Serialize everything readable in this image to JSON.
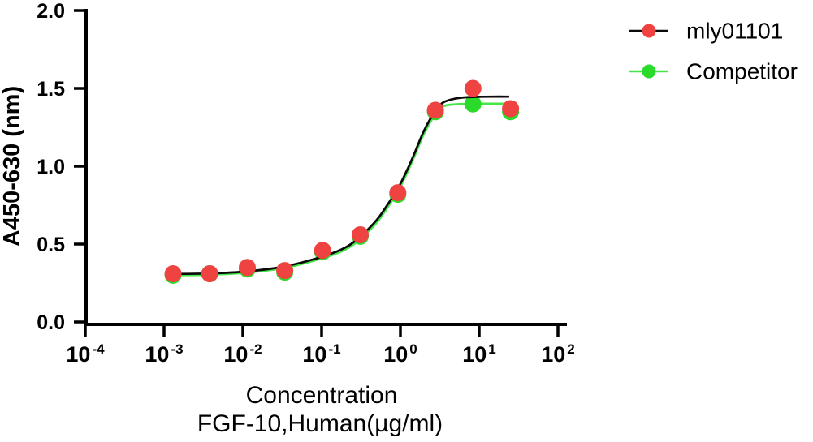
{
  "chart_data": {
    "type": "scatter",
    "title": "",
    "x_axis": {
      "title_line1": "Concentration",
      "title_line2": "FGF-10,Human(µg/ml)",
      "scale": "log10",
      "range_exponents": [
        -4,
        2
      ],
      "ticks": [
        {
          "base": "10",
          "exp": "-4"
        },
        {
          "base": "10",
          "exp": "-3"
        },
        {
          "base": "10",
          "exp": "-2"
        },
        {
          "base": "10",
          "exp": "-1"
        },
        {
          "base": "10",
          "exp": "0"
        },
        {
          "base": "10",
          "exp": "1"
        },
        {
          "base": "10",
          "exp": "2"
        }
      ]
    },
    "y_axis": {
      "title": "A450-630（nm）",
      "range": [
        0.0,
        2.0
      ],
      "ticks": [
        {
          "label": "0.0",
          "value": 0.0
        },
        {
          "label": "0.5",
          "value": 0.5
        },
        {
          "label": "1.0",
          "value": 1.0
        },
        {
          "label": "1.5",
          "value": 1.5
        },
        {
          "label": "2.0",
          "value": 2.0
        }
      ]
    },
    "legend": {
      "position": "top-right",
      "items": [
        "mly01101",
        "Competitor"
      ]
    },
    "series": [
      {
        "name": "mly01101",
        "marker_color": "#ee4340",
        "line_color": "#0a0a0a",
        "x": [
          0.0013,
          0.0038,
          0.0114,
          0.034,
          0.103,
          0.309,
          0.926,
          2.78,
          8.33,
          25
        ],
        "y": [
          0.31,
          0.31,
          0.35,
          0.33,
          0.46,
          0.56,
          0.83,
          1.36,
          1.5,
          1.37
        ],
        "fit_curve": {
          "x": [
            0.0013,
            0.0038,
            0.0114,
            0.034,
            0.103,
            0.2,
            0.309,
            0.5,
            0.7,
            0.926,
            1.2,
            1.5,
            2.0,
            2.78,
            3.5,
            5,
            7,
            10,
            15,
            24
          ],
          "y": [
            0.308,
            0.312,
            0.325,
            0.357,
            0.42,
            0.478,
            0.548,
            0.655,
            0.76,
            0.855,
            0.97,
            1.08,
            1.23,
            1.355,
            1.41,
            1.435,
            1.443,
            1.446,
            1.447,
            1.447
          ]
        }
      },
      {
        "name": "Competitor",
        "marker_color": "#2bdb2b",
        "line_color": "#46e64a",
        "x": [
          0.0013,
          0.0038,
          0.0114,
          0.034,
          0.103,
          0.309,
          0.926,
          2.78,
          8.33,
          25
        ],
        "y": [
          0.3,
          0.31,
          0.34,
          0.32,
          0.45,
          0.55,
          0.82,
          1.35,
          1.4,
          1.35
        ],
        "fit_curve": {
          "x": [
            0.0013,
            0.0038,
            0.0114,
            0.034,
            0.103,
            0.2,
            0.309,
            0.5,
            0.7,
            0.926,
            1.2,
            1.5,
            2.0,
            2.78,
            3.5,
            5,
            7,
            10,
            15,
            25
          ],
          "y": [
            0.3,
            0.304,
            0.317,
            0.348,
            0.41,
            0.465,
            0.533,
            0.638,
            0.742,
            0.838,
            0.952,
            1.062,
            1.21,
            1.335,
            1.385,
            1.398,
            1.401,
            1.402,
            1.402,
            1.402
          ]
        }
      }
    ]
  }
}
